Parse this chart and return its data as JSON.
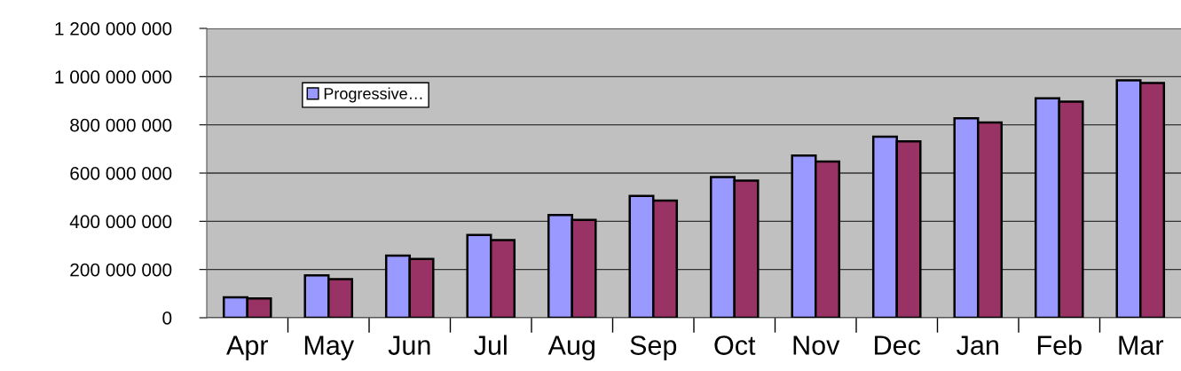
{
  "chart_data": {
    "type": "bar",
    "categories": [
      "Apr",
      "May",
      "Jun",
      "Jul",
      "Aug",
      "Sep",
      "Oct",
      "Nov",
      "Dec",
      "Jan",
      "Feb",
      "Mar"
    ],
    "series": [
      {
        "name": "Progressive…",
        "color": "#9999ff",
        "values": [
          85000000,
          176000000,
          258000000,
          343000000,
          426000000,
          505000000,
          583000000,
          673000000,
          751000000,
          827000000,
          910000000,
          985000000
        ]
      },
      {
        "color": "#993366",
        "values": [
          80000000,
          160000000,
          244000000,
          322000000,
          406000000,
          486000000,
          569000000,
          648000000,
          732000000,
          810000000,
          896000000,
          974000000
        ]
      }
    ],
    "ylim": [
      0,
      1200000000
    ],
    "yticks": [
      0,
      {
        "value": 200000000,
        "label": "200 000 000"
      },
      {
        "value": 400000000,
        "label": "400 000 000"
      },
      {
        "value": 600000000,
        "label": "600 000 000"
      },
      {
        "value": 800000000,
        "label": "800 000 000"
      },
      {
        "value": 1000000000,
        "label": "1 000 000 000"
      },
      {
        "value": 1200000000,
        "label": "1 200 000 000"
      }
    ],
    "grid": "y",
    "legend": "top left"
  }
}
